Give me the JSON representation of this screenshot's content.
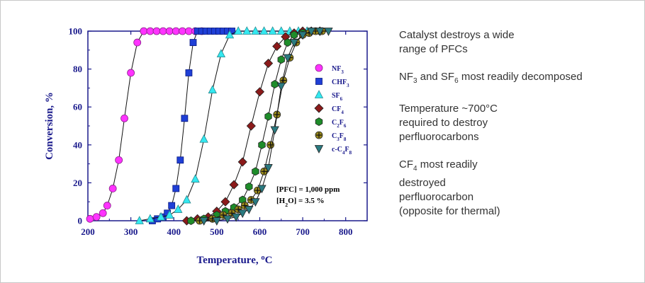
{
  "chart_data": {
    "type": "line",
    "xlabel": {
      "main": "Temperature, ",
      "sup": "o",
      "tail": "C"
    },
    "ylabel": "Conversion, %",
    "xlim": [
      200,
      850
    ],
    "ylim": [
      0,
      100
    ],
    "x_ticks": [
      "200",
      "300",
      "400",
      "500",
      "600",
      "700",
      "800"
    ],
    "y_ticks": [
      "0",
      "20",
      "40",
      "60",
      "80",
      "100"
    ],
    "grid": false,
    "legend_position": "right",
    "annotations": [
      {
        "label": "[PFC] = 1,000 ppm"
      },
      {
        "parts": [
          "[H",
          "2",
          "O] = 3.5 %"
        ]
      }
    ],
    "series": [
      {
        "name": "NF3",
        "legend": [
          "NF",
          "3"
        ],
        "marker": "circle",
        "color": "#ff33ff",
        "x": [
          205,
          220,
          235,
          245,
          258,
          272,
          285,
          300,
          315,
          330,
          345,
          360,
          375,
          390,
          405,
          420,
          435,
          450,
          465
        ],
        "y": [
          1,
          2,
          4,
          8,
          17,
          32,
          54,
          78,
          94,
          100,
          100,
          100,
          100,
          100,
          100,
          100,
          100,
          100,
          100
        ]
      },
      {
        "name": "CHF3",
        "legend": [
          "CHF",
          "3"
        ],
        "marker": "square",
        "color": "#1f3fd6",
        "x": [
          350,
          362,
          375,
          385,
          395,
          405,
          415,
          425,
          435,
          445,
          455,
          465,
          475,
          485,
          495,
          505,
          515,
          525,
          535
        ],
        "y": [
          0,
          1,
          2,
          4,
          8,
          17,
          32,
          54,
          78,
          94,
          100,
          100,
          100,
          100,
          100,
          100,
          100,
          100,
          100
        ]
      },
      {
        "name": "SF6",
        "legend": [
          "SF",
          "6"
        ],
        "marker": "triangle",
        "color": "#33e8f0",
        "x": [
          320,
          345,
          370,
          390,
          410,
          430,
          450,
          470,
          490,
          510,
          530,
          550,
          570,
          590,
          610,
          630,
          650,
          670,
          690,
          710
        ],
        "y": [
          0,
          1,
          2,
          3,
          6,
          11,
          22,
          43,
          69,
          88,
          98,
          100,
          100,
          100,
          100,
          100,
          100,
          100,
          100,
          100
        ]
      },
      {
        "name": "CF4",
        "legend": [
          "CF",
          "4"
        ],
        "marker": "diamond",
        "color": "#8b1a1a",
        "x": [
          430,
          455,
          480,
          500,
          520,
          540,
          560,
          580,
          600,
          620,
          640,
          660,
          680,
          700,
          720,
          740
        ],
        "y": [
          0,
          1,
          2,
          5,
          10,
          19,
          31,
          50,
          68,
          83,
          92,
          97,
          99,
          100,
          100,
          100
        ]
      },
      {
        "name": "C2F6",
        "legend": [
          "C",
          "2",
          "F",
          "6"
        ],
        "marker": "hexagon",
        "color": "#1e8c2a",
        "x": [
          440,
          470,
          500,
          520,
          540,
          560,
          575,
          590,
          605,
          620,
          635,
          650,
          665,
          680,
          700,
          720,
          740
        ],
        "y": [
          0,
          1,
          3,
          5,
          7,
          11,
          18,
          26,
          40,
          55,
          72,
          85,
          94,
          98,
          99,
          100,
          100
        ]
      },
      {
        "name": "C3F8",
        "legend": [
          "C",
          "3",
          "F",
          "8"
        ],
        "marker": "cross-circle",
        "color": "#9a8a1a",
        "x": [
          460,
          490,
          515,
          535,
          550,
          565,
          580,
          595,
          610,
          625,
          640,
          655,
          670,
          685,
          700,
          715,
          730,
          745
        ],
        "y": [
          0,
          1,
          3,
          4,
          6,
          8,
          11,
          16,
          26,
          40,
          56,
          74,
          86,
          94,
          98,
          99,
          100,
          100
        ]
      },
      {
        "name": "c-C4F8",
        "legend": [
          "c-C",
          "4",
          "F",
          "8"
        ],
        "marker": "triangle-down",
        "color": "#2a7a80",
        "x": [
          470,
          500,
          525,
          545,
          560,
          575,
          590,
          605,
          620,
          635,
          650,
          665,
          680,
          700,
          720,
          740,
          760
        ],
        "y": [
          0,
          0,
          1,
          2,
          4,
          6,
          10,
          17,
          28,
          48,
          71,
          86,
          94,
          98,
          100,
          100,
          100
        ]
      }
    ]
  },
  "notes": [
    {
      "lines": [
        [
          {
            "t": "Catalyst destroys a wide"
          }
        ],
        [
          {
            "t": "range of PFCs"
          }
        ]
      ]
    },
    {
      "lines": [
        [
          {
            "t": "NF"
          },
          {
            "sub": "3"
          },
          {
            "t": " and SF"
          },
          {
            "sub": "6"
          },
          {
            "t": " most readily decomposed"
          }
        ]
      ]
    },
    {
      "lines": [
        [
          {
            "t": "Temperature ~700°C"
          }
        ],
        [
          {
            "t": "required to destroy"
          }
        ],
        [
          {
            "t": "perfluorocarbons"
          }
        ]
      ]
    },
    {
      "lines": [
        [
          {
            "t": "CF"
          },
          {
            "sub": "4"
          },
          {
            "t": " most readily"
          }
        ],
        [
          {
            "t": "destroyed"
          }
        ],
        [
          {
            "t": "perfluorocarbon"
          }
        ],
        [
          {
            "t": "(opposite for thermal)"
          }
        ]
      ]
    }
  ]
}
